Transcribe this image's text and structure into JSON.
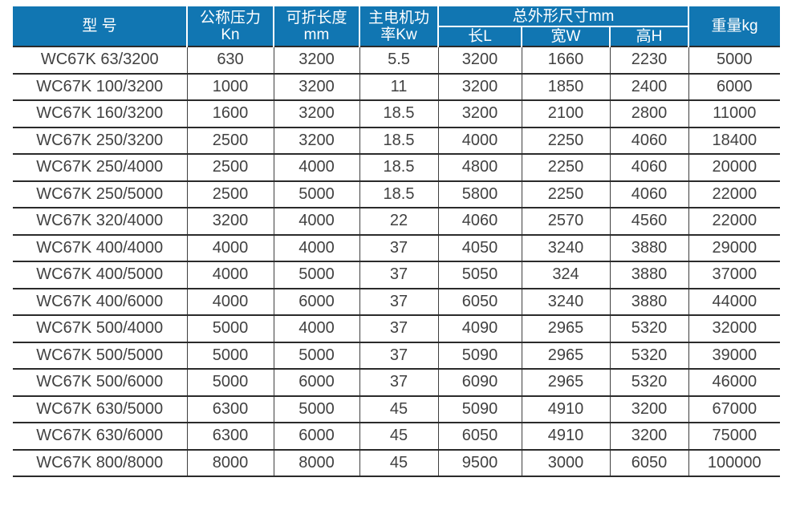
{
  "table": {
    "headers": {
      "model": "型 号",
      "pressure_line1": "公称压力",
      "pressure_line2": "Kn",
      "fold_length_line1": "可折长度",
      "fold_length_line2": "mm",
      "motor_power_line1": "主电机功",
      "motor_power_line2": "率Kw",
      "dimensions_group": "总外形尺寸mm",
      "dim_length": "长L",
      "dim_width": "宽W",
      "dim_height": "高H",
      "weight": "重量kg"
    },
    "rows": [
      [
        "WC67K 63/3200",
        "630",
        "3200",
        "5.5",
        "3200",
        "1660",
        "2230",
        "5000"
      ],
      [
        "WC67K 100/3200",
        "1000",
        "3200",
        "11",
        "3200",
        "1850",
        "2400",
        "6000"
      ],
      [
        "WC67K 160/3200",
        "1600",
        "3200",
        "18.5",
        "3200",
        "2100",
        "2800",
        "11000"
      ],
      [
        "WC67K 250/3200",
        "2500",
        "3200",
        "18.5",
        "4000",
        "2250",
        "4060",
        "18400"
      ],
      [
        "WC67K 250/4000",
        "2500",
        "4000",
        "18.5",
        "4800",
        "2250",
        "4060",
        "20000"
      ],
      [
        "WC67K 250/5000",
        "2500",
        "5000",
        "18.5",
        "5800",
        "2250",
        "4060",
        "22000"
      ],
      [
        "WC67K 320/4000",
        "3200",
        "4000",
        "22",
        "4060",
        "2570",
        "4560",
        "22000"
      ],
      [
        "WC67K 400/4000",
        "4000",
        "4000",
        "37",
        "4050",
        "3240",
        "3880",
        "29000"
      ],
      [
        "WC67K 400/5000",
        "4000",
        "5000",
        "37",
        "5050",
        "324",
        "3880",
        "37000"
      ],
      [
        "WC67K 400/6000",
        "4000",
        "6000",
        "37",
        "6050",
        "3240",
        "3880",
        "44000"
      ],
      [
        "WC67K 500/4000",
        "5000",
        "4000",
        "37",
        "4090",
        "2965",
        "5320",
        "32000"
      ],
      [
        "WC67K 500/5000",
        "5000",
        "5000",
        "37",
        "5090",
        "2965",
        "5320",
        "39000"
      ],
      [
        "WC67K 500/6000",
        "5000",
        "6000",
        "37",
        "6090",
        "2965",
        "5320",
        "46000"
      ],
      [
        "WC67K 630/5000",
        "6300",
        "5000",
        "45",
        "5090",
        "4910",
        "3200",
        "67000"
      ],
      [
        "WC67K 630/6000",
        "6300",
        "6000",
        "45",
        "6050",
        "4910",
        "3200",
        "75000"
      ],
      [
        "WC67K 800/8000",
        "8000",
        "8000",
        "45",
        "9500",
        "3000",
        "6050",
        "100000"
      ]
    ]
  },
  "colors": {
    "header_bg": "#1176b2",
    "header_text": "#ffffff",
    "body_text": "#414141",
    "row_line": "#2b2b2b",
    "col_line": "#3f3f3f"
  }
}
